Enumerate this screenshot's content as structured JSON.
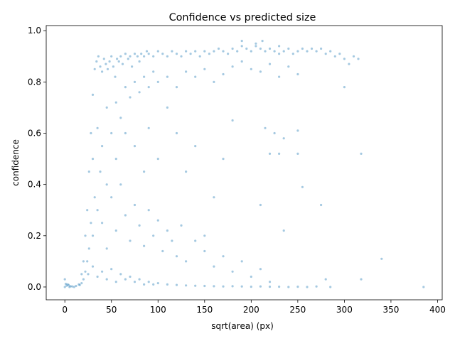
{
  "chart_data": {
    "type": "scatter",
    "title": "Confidence vs predicted size",
    "xlabel": "sqrt(area) (px)",
    "ylabel": "confidence",
    "xlim": [
      -20,
      405
    ],
    "ylim": [
      -0.05,
      1.02
    ],
    "xticks": [
      0,
      50,
      100,
      150,
      200,
      250,
      300,
      350,
      400
    ],
    "yticks": [
      0.0,
      0.2,
      0.4,
      0.6,
      0.8,
      1.0
    ],
    "xtick_labels": [
      "0",
      "50",
      "100",
      "150",
      "200",
      "250",
      "300",
      "350",
      "400"
    ],
    "ytick_labels": [
      "0.0",
      "0.2",
      "0.4",
      "0.6",
      "0.8",
      "1.0"
    ],
    "grid": false,
    "legend": "none",
    "point_color": "#1f77b4",
    "point_opacity": 0.4,
    "series": [
      {
        "points": [
          [
            0,
            0.0
          ],
          [
            2,
            0.005
          ],
          [
            3,
            0.01
          ],
          [
            5,
            0.0
          ],
          [
            8,
            0.002
          ],
          [
            0,
            0.03
          ],
          [
            1,
            0.012
          ],
          [
            4,
            0.008
          ],
          [
            6,
            0.003
          ],
          [
            10,
            0.0
          ],
          [
            12,
            0.004
          ],
          [
            15,
            0.01
          ],
          [
            18,
            0.05
          ],
          [
            20,
            0.1
          ],
          [
            22,
            0.2
          ],
          [
            24,
            0.3
          ],
          [
            26,
            0.45
          ],
          [
            28,
            0.6
          ],
          [
            30,
            0.75
          ],
          [
            32,
            0.85
          ],
          [
            34,
            0.88
          ],
          [
            36,
            0.9
          ],
          [
            38,
            0.86
          ],
          [
            40,
            0.84
          ],
          [
            42,
            0.89
          ],
          [
            44,
            0.87
          ],
          [
            46,
            0.85
          ],
          [
            48,
            0.88
          ],
          [
            50,
            0.9
          ],
          [
            52,
            0.86
          ],
          [
            54,
            0.82
          ],
          [
            56,
            0.89
          ],
          [
            58,
            0.88
          ],
          [
            60,
            0.9
          ],
          [
            62,
            0.87
          ],
          [
            65,
            0.91
          ],
          [
            68,
            0.89
          ],
          [
            70,
            0.9
          ],
          [
            72,
            0.86
          ],
          [
            75,
            0.91
          ],
          [
            78,
            0.9
          ],
          [
            80,
            0.88
          ],
          [
            82,
            0.91
          ],
          [
            85,
            0.9
          ],
          [
            88,
            0.92
          ],
          [
            90,
            0.91
          ],
          [
            95,
            0.9
          ],
          [
            100,
            0.92
          ],
          [
            105,
            0.91
          ],
          [
            110,
            0.9
          ],
          [
            115,
            0.92
          ],
          [
            120,
            0.91
          ],
          [
            125,
            0.9
          ],
          [
            130,
            0.92
          ],
          [
            135,
            0.91
          ],
          [
            140,
            0.92
          ],
          [
            145,
            0.9
          ],
          [
            150,
            0.92
          ],
          [
            155,
            0.91
          ],
          [
            160,
            0.92
          ],
          [
            165,
            0.93
          ],
          [
            170,
            0.92
          ],
          [
            175,
            0.91
          ],
          [
            180,
            0.93
          ],
          [
            185,
            0.92
          ],
          [
            190,
            0.94
          ],
          [
            195,
            0.93
          ],
          [
            200,
            0.92
          ],
          [
            205,
            0.94
          ],
          [
            210,
            0.93
          ],
          [
            215,
            0.92
          ],
          [
            220,
            0.93
          ],
          [
            225,
            0.92
          ],
          [
            230,
            0.91
          ],
          [
            235,
            0.92
          ],
          [
            240,
            0.93
          ],
          [
            245,
            0.91
          ],
          [
            250,
            0.92
          ],
          [
            255,
            0.93
          ],
          [
            260,
            0.92
          ],
          [
            265,
            0.93
          ],
          [
            270,
            0.92
          ],
          [
            275,
            0.93
          ],
          [
            280,
            0.91
          ],
          [
            285,
            0.92
          ],
          [
            290,
            0.9
          ],
          [
            295,
            0.91
          ],
          [
            300,
            0.89
          ],
          [
            305,
            0.87
          ],
          [
            310,
            0.9
          ],
          [
            315,
            0.89
          ],
          [
            190,
            0.96
          ],
          [
            212,
            0.96
          ],
          [
            205,
            0.95
          ],
          [
            230,
            0.94
          ],
          [
            30,
            0.5
          ],
          [
            35,
            0.62
          ],
          [
            40,
            0.55
          ],
          [
            45,
            0.7
          ],
          [
            50,
            0.6
          ],
          [
            55,
            0.72
          ],
          [
            60,
            0.66
          ],
          [
            65,
            0.78
          ],
          [
            70,
            0.74
          ],
          [
            75,
            0.8
          ],
          [
            80,
            0.76
          ],
          [
            85,
            0.82
          ],
          [
            90,
            0.78
          ],
          [
            95,
            0.84
          ],
          [
            100,
            0.8
          ],
          [
            110,
            0.82
          ],
          [
            120,
            0.78
          ],
          [
            130,
            0.84
          ],
          [
            140,
            0.82
          ],
          [
            150,
            0.85
          ],
          [
            160,
            0.8
          ],
          [
            170,
            0.83
          ],
          [
            180,
            0.86
          ],
          [
            190,
            0.88
          ],
          [
            200,
            0.85
          ],
          [
            210,
            0.84
          ],
          [
            220,
            0.87
          ],
          [
            230,
            0.82
          ],
          [
            240,
            0.86
          ],
          [
            250,
            0.83
          ],
          [
            300,
            0.78
          ],
          [
            215,
            0.62
          ],
          [
            225,
            0.6
          ],
          [
            235,
            0.58
          ],
          [
            250,
            0.52
          ],
          [
            230,
            0.52
          ],
          [
            220,
            0.52
          ],
          [
            255,
            0.39
          ],
          [
            275,
            0.32
          ],
          [
            318,
            0.52
          ],
          [
            340,
            0.11
          ],
          [
            210,
            0.32
          ],
          [
            235,
            0.22
          ],
          [
            280,
            0.03
          ],
          [
            250,
            0.61
          ],
          [
            30,
            0.2
          ],
          [
            35,
            0.3
          ],
          [
            40,
            0.25
          ],
          [
            45,
            0.15
          ],
          [
            50,
            0.35
          ],
          [
            55,
            0.22
          ],
          [
            60,
            0.4
          ],
          [
            65,
            0.28
          ],
          [
            70,
            0.18
          ],
          [
            75,
            0.32
          ],
          [
            80,
            0.24
          ],
          [
            85,
            0.16
          ],
          [
            90,
            0.3
          ],
          [
            95,
            0.2
          ],
          [
            100,
            0.26
          ],
          [
            105,
            0.14
          ],
          [
            110,
            0.22
          ],
          [
            115,
            0.18
          ],
          [
            120,
            0.12
          ],
          [
            125,
            0.24
          ],
          [
            130,
            0.1
          ],
          [
            140,
            0.18
          ],
          [
            150,
            0.14
          ],
          [
            160,
            0.08
          ],
          [
            170,
            0.12
          ],
          [
            180,
            0.06
          ],
          [
            190,
            0.1
          ],
          [
            200,
            0.04
          ],
          [
            210,
            0.07
          ],
          [
            220,
            0.02
          ],
          [
            25,
            0.05
          ],
          [
            30,
            0.08
          ],
          [
            35,
            0.04
          ],
          [
            40,
            0.06
          ],
          [
            45,
            0.03
          ],
          [
            50,
            0.07
          ],
          [
            55,
            0.02
          ],
          [
            60,
            0.05
          ],
          [
            65,
            0.03
          ],
          [
            70,
            0.04
          ],
          [
            75,
            0.02
          ],
          [
            80,
            0.03
          ],
          [
            85,
            0.01
          ],
          [
            90,
            0.02
          ],
          [
            95,
            0.01
          ],
          [
            100,
            0.015
          ],
          [
            110,
            0.01
          ],
          [
            120,
            0.008
          ],
          [
            130,
            0.006
          ],
          [
            140,
            0.005
          ],
          [
            150,
            0.004
          ],
          [
            160,
            0.003
          ],
          [
            170,
            0.002
          ],
          [
            180,
            0.003
          ],
          [
            190,
            0.002
          ],
          [
            200,
            0.001
          ],
          [
            210,
            0.002
          ],
          [
            220,
            0.001
          ],
          [
            230,
            0.001
          ],
          [
            240,
            0.0
          ],
          [
            250,
            0.001
          ],
          [
            260,
            0.0
          ],
          [
            270,
            0.002
          ],
          [
            285,
            0.0
          ],
          [
            318,
            0.03
          ],
          [
            385,
            0.0
          ],
          [
            150,
            0.2
          ],
          [
            160,
            0.35
          ],
          [
            170,
            0.5
          ],
          [
            180,
            0.65
          ],
          [
            140,
            0.55
          ],
          [
            130,
            0.45
          ],
          [
            120,
            0.6
          ],
          [
            110,
            0.7
          ],
          [
            100,
            0.5
          ],
          [
            90,
            0.62
          ],
          [
            85,
            0.45
          ],
          [
            75,
            0.55
          ],
          [
            65,
            0.6
          ],
          [
            55,
            0.5
          ],
          [
            45,
            0.4
          ],
          [
            38,
            0.45
          ],
          [
            32,
            0.35
          ],
          [
            28,
            0.25
          ],
          [
            26,
            0.15
          ],
          [
            24,
            0.1
          ],
          [
            22,
            0.06
          ],
          [
            20,
            0.03
          ],
          [
            18,
            0.015
          ],
          [
            16,
            0.008
          ]
        ]
      }
    ]
  }
}
